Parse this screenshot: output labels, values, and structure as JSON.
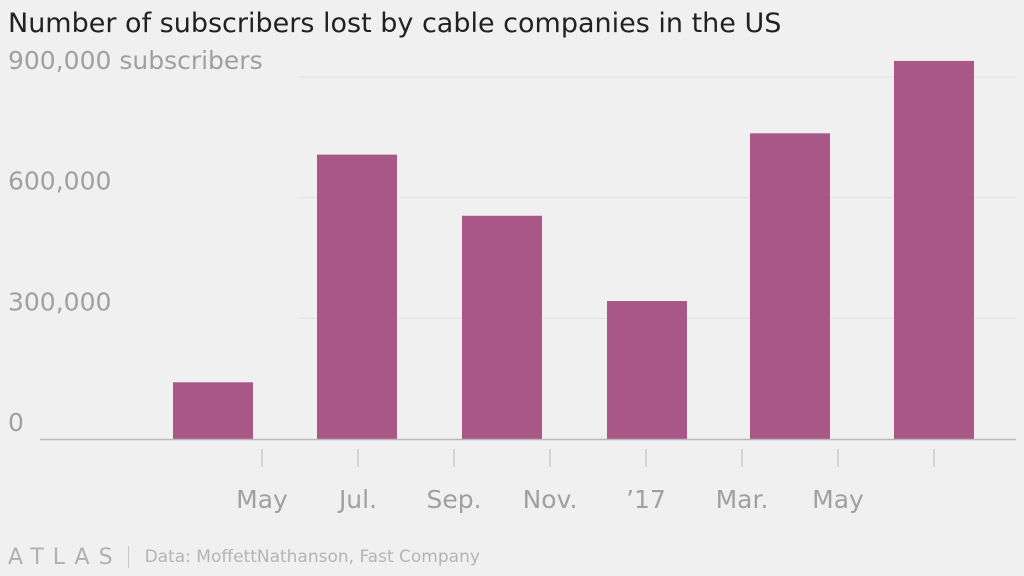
{
  "title": "Number of subscribers lost by cable companies in the US",
  "source": "Data: MoffettNathanson, Fast Company",
  "logo": "ATLAS",
  "colors": {
    "bar": "#a85787",
    "axis": "#b8b8b8",
    "grid": "#e2e2e2",
    "label": "#a0a0a0",
    "background": "#f0f0f0"
  },
  "chart_data": {
    "type": "bar",
    "title": "Number of subscribers lost by cable companies in the US",
    "y_unit_label": "subscribers",
    "ylim": [
      0,
      900000
    ],
    "yticks": [
      {
        "value": 0,
        "label": "0"
      },
      {
        "value": 300000,
        "label": "300,000"
      },
      {
        "value": 600000,
        "label": "600,000"
      },
      {
        "value": 900000,
        "label": "900,000 subscribers"
      }
    ],
    "x_tick_labels": [
      "May",
      "Jul.",
      "Sep.",
      "Nov.",
      "’17",
      "Mar.",
      "May"
    ],
    "x_tick_count": 8,
    "values": [
      141000,
      707000,
      555000,
      343000,
      760000,
      940000
    ],
    "grid": true
  }
}
